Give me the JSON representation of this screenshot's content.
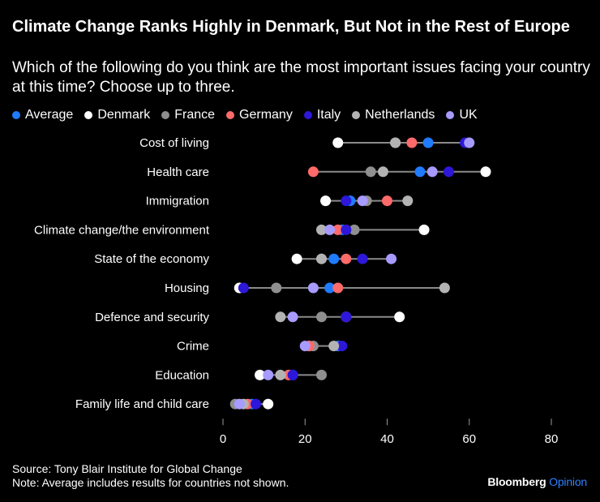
{
  "header": {
    "title": "Climate Change Ranks Highly in Denmark, But Not in the Rest of Europe",
    "subtitle": "Which of the following do you think are the most important issues facing your country at this time? Choose up to three."
  },
  "footer": {
    "source": "Source: Tony Blair Institute for Global Change",
    "note": "Note: Average includes results for countries not shown.",
    "brand_main": "Bloomberg",
    "brand_sub": "Opinion"
  },
  "chart_data": {
    "type": "dot",
    "xlim": [
      0,
      80
    ],
    "xticks": [
      0,
      20,
      40,
      60,
      80
    ],
    "grid": false,
    "legend_position": "top-left",
    "categories": [
      "Cost of living",
      "Health care",
      "Immigration",
      "Climate change/the environment",
      "State of the economy",
      "Housing",
      "Defence and security",
      "Crime",
      "Education",
      "Family life and child care"
    ],
    "series": [
      {
        "name": "Average",
        "color": "#1f7bff",
        "values": [
          50,
          48,
          31,
          29,
          27,
          26,
          30,
          28,
          17,
          7
        ]
      },
      {
        "name": "Denmark",
        "color": "#ffffff",
        "values": [
          28,
          64,
          25,
          49,
          18,
          4,
          43,
          21,
          9,
          11
        ]
      },
      {
        "name": "France",
        "color": "#8f8f8f",
        "values": [
          42,
          36,
          35,
          32,
          24,
          13,
          24,
          22,
          24,
          3
        ]
      },
      {
        "name": "Germany",
        "color": "#ff6a6a",
        "values": [
          46,
          22,
          40,
          28,
          30,
          28,
          30,
          21,
          16,
          6
        ]
      },
      {
        "name": "Italy",
        "color": "#2d17d9",
        "values": [
          59,
          55,
          30,
          30,
          34,
          5,
          30,
          29,
          17,
          8
        ]
      },
      {
        "name": "Netherlands",
        "color": "#b3b3b3",
        "values": [
          42,
          39,
          45,
          24,
          24,
          54,
          14,
          27,
          14,
          5
        ]
      },
      {
        "name": "UK",
        "color": "#a79bff",
        "values": [
          60,
          51,
          34,
          26,
          41,
          22,
          17,
          20,
          11,
          4
        ]
      }
    ]
  }
}
